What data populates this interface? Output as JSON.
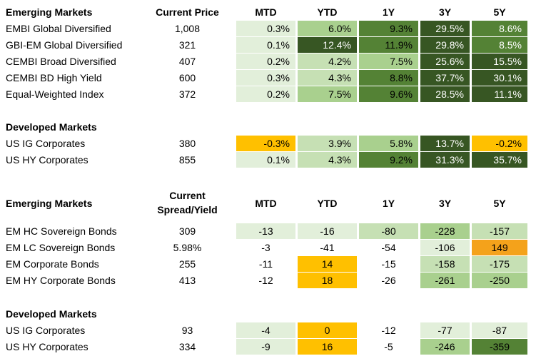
{
  "colors": {
    "lightest_green": "#e2efda",
    "light_green": "#c6e0b4",
    "mid_green": "#a9d08e",
    "green": "#548235",
    "dark_green": "#375623",
    "yellow": "#ffc000",
    "orange": "#f4a21b"
  },
  "table1": {
    "headers": {
      "label": "Emerging Markets",
      "price": "Current Price",
      "mtd": "MTD",
      "ytd": "YTD",
      "y1": "1Y",
      "y3": "3Y",
      "y5": "5Y"
    },
    "em_rows": [
      {
        "name": "EMBI Global Diversified",
        "price": "1,008",
        "mtd": "0.3%",
        "ytd": "6.0%",
        "y1": "9.3%",
        "y3": "29.5%",
        "y5": "8.6%"
      },
      {
        "name": "GBI-EM Global Diversified",
        "price": "321",
        "mtd": "0.1%",
        "ytd": "12.4%",
        "y1": "11.9%",
        "y3": "29.8%",
        "y5": "8.5%"
      },
      {
        "name": "CEMBI Broad Diversified",
        "price": "407",
        "mtd": "0.2%",
        "ytd": "4.2%",
        "y1": "7.5%",
        "y3": "25.6%",
        "y5": "15.5%"
      },
      {
        "name": "CEMBI BD High Yield",
        "price": "600",
        "mtd": "0.3%",
        "ytd": "4.3%",
        "y1": "8.8%",
        "y3": "37.7%",
        "y5": "30.1%"
      },
      {
        "name": "Equal-Weighted Index",
        "price": "372",
        "mtd": "0.2%",
        "ytd": "7.5%",
        "y1": "9.6%",
        "y3": "28.5%",
        "y5": "11.1%"
      }
    ],
    "dm_header": "Developed Markets",
    "dm_rows": [
      {
        "name": "US IG Corporates",
        "price": "380",
        "mtd": "-0.3%",
        "ytd": "3.9%",
        "y1": "5.8%",
        "y3": "13.7%",
        "y5": "-0.2%"
      },
      {
        "name": "US HY Corporates",
        "price": "855",
        "mtd": "0.1%",
        "ytd": "4.3%",
        "y1": "9.2%",
        "y3": "31.3%",
        "y5": "35.7%"
      }
    ]
  },
  "table2": {
    "headers": {
      "label": "Emerging Markets",
      "spread_line1": "Current",
      "spread_line2": "Spread/Yield",
      "mtd": "MTD",
      "ytd": "YTD",
      "y1": "1Y",
      "y3": "3Y",
      "y5": "5Y"
    },
    "em_rows": [
      {
        "name": "EM HC Sovereign Bonds",
        "value": "309",
        "mtd": "-13",
        "ytd": "-16",
        "y1": "-80",
        "y3": "-228",
        "y5": "-157"
      },
      {
        "name": "EM LC Sovereign Bonds",
        "value": "5.98%",
        "mtd": "-3",
        "ytd": "-41",
        "y1": "-54",
        "y3": "-106",
        "y5": "149"
      },
      {
        "name": "EM Corporate Bonds",
        "value": "255",
        "mtd": "-11",
        "ytd": "14",
        "y1": "-15",
        "y3": "-158",
        "y5": "-175"
      },
      {
        "name": "EM HY Corporate Bonds",
        "value": "413",
        "mtd": "-12",
        "ytd": "18",
        "y1": "-26",
        "y3": "-261",
        "y5": "-250"
      }
    ],
    "dm_header": "Developed Markets",
    "dm_rows": [
      {
        "name": "US IG Corporates",
        "value": "93",
        "mtd": "-4",
        "ytd": "0",
        "y1": "-12",
        "y3": "-77",
        "y5": "-87"
      },
      {
        "name": "US HY Corporates",
        "value": "334",
        "mtd": "-9",
        "ytd": "16",
        "y1": "-5",
        "y3": "-246",
        "y5": "-359"
      }
    ]
  }
}
